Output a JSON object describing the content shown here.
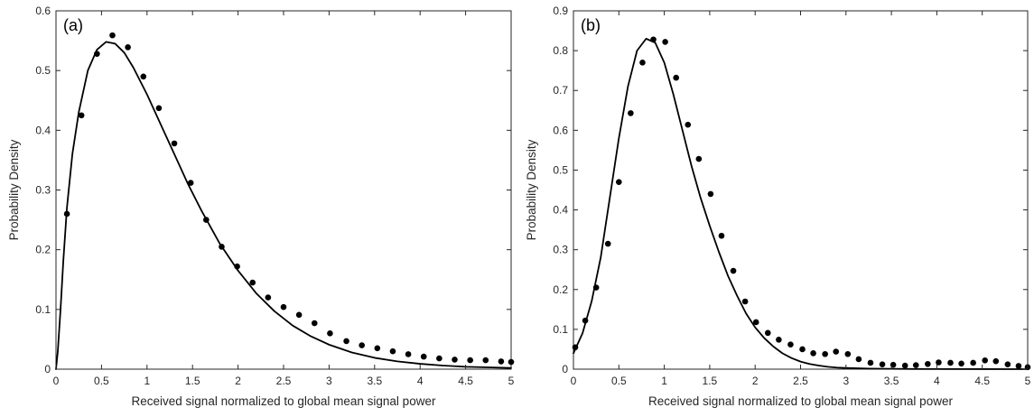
{
  "chart_data": [
    {
      "type": "scatter",
      "panel_label": "(a)",
      "xlabel": "Received signal normalized to global mean signal power",
      "ylabel": "Probability Density",
      "xlim": [
        0,
        5
      ],
      "ylim": [
        0,
        0.6
      ],
      "xticks": [
        0,
        0.5,
        1,
        1.5,
        2,
        2.5,
        3,
        3.5,
        4,
        4.5,
        5
      ],
      "xtick_labels": [
        "0",
        "0.5",
        "1",
        "1.5",
        "2",
        "2.5",
        "3",
        "3.5",
        "4",
        "4.5",
        "5"
      ],
      "yticks": [
        0,
        0.1,
        0.2,
        0.3,
        0.4,
        0.5,
        0.6
      ],
      "ytick_labels": [
        "0",
        "0.1",
        "0.2",
        "0.3",
        "0.4",
        "0.5",
        "0.6"
      ],
      "grid": false,
      "series": [
        {
          "style": "markers",
          "x": [
            0.12,
            0.28,
            0.45,
            0.62,
            0.79,
            0.96,
            1.13,
            1.3,
            1.48,
            1.65,
            1.82,
            1.99,
            2.16,
            2.33,
            2.5,
            2.67,
            2.84,
            3.01,
            3.19,
            3.36,
            3.53,
            3.7,
            3.87,
            4.04,
            4.21,
            4.38,
            4.55,
            4.72,
            4.89,
            5.0
          ],
          "y": [
            0.26,
            0.425,
            0.528,
            0.559,
            0.539,
            0.49,
            0.437,
            0.378,
            0.312,
            0.25,
            0.205,
            0.172,
            0.145,
            0.12,
            0.104,
            0.091,
            0.077,
            0.06,
            0.047,
            0.04,
            0.035,
            0.03,
            0.025,
            0.021,
            0.018,
            0.016,
            0.015,
            0.015,
            0.013,
            0.012
          ]
        },
        {
          "style": "line",
          "x": [
            0.0,
            0.02,
            0.05,
            0.08,
            0.12,
            0.18,
            0.25,
            0.35,
            0.45,
            0.55,
            0.65,
            0.75,
            0.85,
            1.0,
            1.15,
            1.3,
            1.45,
            1.6,
            1.8,
            2.0,
            2.2,
            2.4,
            2.6,
            2.8,
            3.0,
            3.25,
            3.5,
            3.75,
            4.0,
            4.25,
            4.5,
            4.75,
            5.0
          ],
          "y": [
            0.0,
            0.03,
            0.1,
            0.18,
            0.27,
            0.36,
            0.43,
            0.5,
            0.535,
            0.548,
            0.545,
            0.53,
            0.505,
            0.46,
            0.41,
            0.36,
            0.31,
            0.265,
            0.21,
            0.165,
            0.127,
            0.097,
            0.073,
            0.055,
            0.041,
            0.028,
            0.019,
            0.013,
            0.009,
            0.006,
            0.004,
            0.003,
            0.002
          ]
        }
      ]
    },
    {
      "type": "scatter",
      "panel_label": "(b)",
      "xlabel": "Received signal normalized to global mean signal power",
      "ylabel": "Probability Density",
      "xlim": [
        0,
        5
      ],
      "ylim": [
        0,
        0.9
      ],
      "xticks": [
        0,
        0.5,
        1,
        1.5,
        2,
        2.5,
        3,
        3.5,
        4,
        4.5,
        5
      ],
      "xtick_labels": [
        "0",
        "0.5",
        "1",
        "1.5",
        "2",
        "2.5",
        "3",
        "3.5",
        "4",
        "4.5",
        "5"
      ],
      "yticks": [
        0,
        0.1,
        0.2,
        0.3,
        0.4,
        0.5,
        0.6,
        0.7,
        0.8,
        0.9
      ],
      "ytick_labels": [
        "0",
        "0.1",
        "0.2",
        "0.3",
        "0.4",
        "0.5",
        "0.6",
        "0.7",
        "0.8",
        "0.9"
      ],
      "grid": false,
      "series": [
        {
          "style": "markers",
          "x": [
            0.02,
            0.13,
            0.25,
            0.38,
            0.5,
            0.63,
            0.76,
            0.88,
            1.01,
            1.13,
            1.26,
            1.38,
            1.51,
            1.63,
            1.76,
            1.89,
            2.01,
            2.14,
            2.26,
            2.39,
            2.52,
            2.64,
            2.77,
            2.89,
            3.02,
            3.14,
            3.27,
            3.4,
            3.52,
            3.65,
            3.77,
            3.9,
            4.02,
            4.15,
            4.27,
            4.4,
            4.53,
            4.65,
            4.78,
            4.9,
            5.0
          ],
          "y": [
            0.055,
            0.122,
            0.205,
            0.315,
            0.47,
            0.643,
            0.77,
            0.828,
            0.822,
            0.732,
            0.614,
            0.528,
            0.44,
            0.335,
            0.247,
            0.17,
            0.118,
            0.091,
            0.074,
            0.062,
            0.05,
            0.04,
            0.038,
            0.044,
            0.038,
            0.025,
            0.016,
            0.012,
            0.011,
            0.009,
            0.01,
            0.013,
            0.017,
            0.016,
            0.014,
            0.016,
            0.022,
            0.02,
            0.012,
            0.008,
            0.005
          ]
        },
        {
          "style": "line",
          "x": [
            0.0,
            0.1,
            0.2,
            0.3,
            0.4,
            0.5,
            0.6,
            0.7,
            0.8,
            0.9,
            1.0,
            1.1,
            1.2,
            1.3,
            1.4,
            1.5,
            1.6,
            1.7,
            1.8,
            1.9,
            2.0,
            2.1,
            2.2,
            2.3,
            2.4,
            2.5,
            2.6,
            2.7,
            2.8,
            2.9,
            3.0,
            3.25,
            3.5,
            3.75,
            4.0,
            4.5,
            5.0
          ],
          "y": [
            0.04,
            0.09,
            0.17,
            0.28,
            0.43,
            0.58,
            0.71,
            0.8,
            0.83,
            0.82,
            0.77,
            0.69,
            0.6,
            0.51,
            0.43,
            0.36,
            0.295,
            0.235,
            0.185,
            0.14,
            0.105,
            0.078,
            0.057,
            0.04,
            0.028,
            0.019,
            0.013,
            0.009,
            0.006,
            0.004,
            0.003,
            0.0015,
            0.0008,
            0.0004,
            0.0002,
            0.0001,
            0.0
          ]
        }
      ]
    }
  ]
}
